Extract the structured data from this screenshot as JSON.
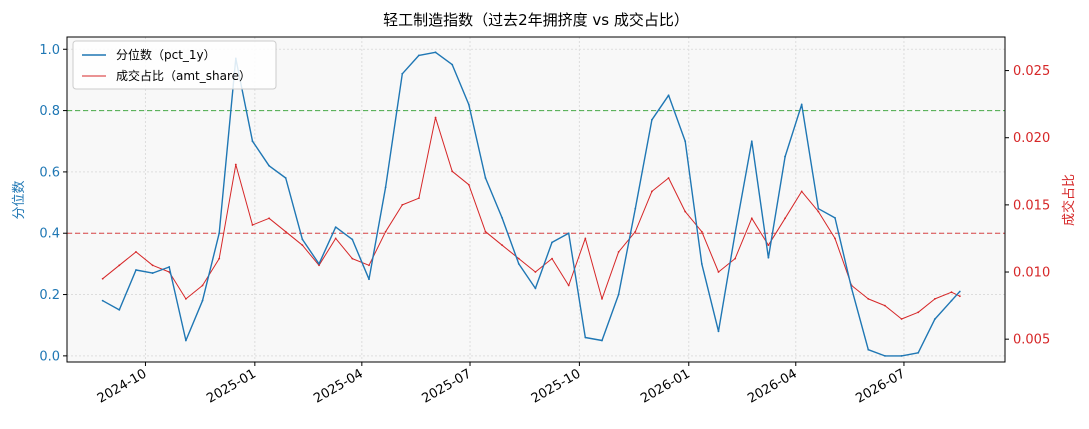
{
  "chart_data": {
    "type": "line",
    "title": "轻工制造指数（过去2年拥挤度 vs 成交占比）",
    "ylabel_left": "分位数",
    "ylabel_right": "成交占比",
    "xlabel": "",
    "ylim_left": [
      -0.02,
      1.04
    ],
    "ylim_right": [
      0.0033,
      0.0275
    ],
    "yticks_left": [
      "0.0",
      "0.2",
      "0.4",
      "0.6",
      "0.8",
      "1.0"
    ],
    "yticks_right": [
      "0.005",
      "0.010",
      "0.015",
      "0.020",
      "0.025"
    ],
    "x_ticks": [
      "2024-10",
      "2025-01",
      "2025-04",
      "2025-07",
      "2025-10",
      "2026-01",
      "2026-04",
      "2026-07"
    ],
    "grid": true,
    "legend_position": "top-left",
    "hlines": [
      {
        "axis": "left",
        "value": 0.8,
        "color": "#2ca02c",
        "style": "dashed"
      },
      {
        "axis": "left",
        "value": 0.4,
        "color": "#d62728",
        "style": "dashed"
      }
    ],
    "colors": {
      "pct": "#1f77b4",
      "amt": "#d62728"
    },
    "series": [
      {
        "name": "分位数（pct_1y）",
        "axis": "left",
        "x": [
          "2024-08-26",
          "2024-09-09",
          "2024-09-23",
          "2024-10-07",
          "2024-10-21",
          "2024-11-04",
          "2024-11-18",
          "2024-12-02",
          "2024-12-16",
          "2024-12-30",
          "2025-01-13",
          "2025-01-27",
          "2025-02-10",
          "2025-02-24",
          "2025-03-10",
          "2025-03-24",
          "2025-04-07",
          "2025-04-21",
          "2025-05-05",
          "2025-05-19",
          "2025-06-02",
          "2025-06-16",
          "2025-06-30",
          "2025-07-14",
          "2025-07-28",
          "2025-08-11",
          "2025-08-25",
          "2025-09-08",
          "2025-09-22",
          "2025-10-06",
          "2025-10-20",
          "2025-11-03",
          "2025-11-17",
          "2025-12-01",
          "2025-12-15",
          "2025-12-29",
          "2026-01-12",
          "2026-01-26",
          "2026-02-09",
          "2026-02-23",
          "2026-03-09",
          "2026-03-23",
          "2026-04-06",
          "2026-04-20",
          "2026-05-04",
          "2026-05-18",
          "2026-06-01",
          "2026-06-15",
          "2026-06-29",
          "2026-07-13",
          "2026-07-27",
          "2026-08-10",
          "2026-08-17"
        ],
        "values": [
          0.18,
          0.15,
          0.28,
          0.27,
          0.29,
          0.05,
          0.18,
          0.4,
          0.97,
          0.7,
          0.62,
          0.58,
          0.38,
          0.3,
          0.42,
          0.38,
          0.25,
          0.55,
          0.92,
          0.98,
          0.99,
          0.95,
          0.82,
          0.58,
          0.45,
          0.3,
          0.22,
          0.37,
          0.4,
          0.06,
          0.05,
          0.2,
          0.48,
          0.77,
          0.85,
          0.7,
          0.3,
          0.08,
          0.4,
          0.7,
          0.32,
          0.65,
          0.82,
          0.48,
          0.45,
          0.22,
          0.02,
          0.0,
          0.0,
          0.01,
          0.12,
          0.18,
          0.21
        ]
      },
      {
        "name": "成交占比（amt_share）",
        "axis": "right",
        "x": [
          "2024-08-26",
          "2024-09-09",
          "2024-09-23",
          "2024-10-07",
          "2024-10-21",
          "2024-11-04",
          "2024-11-18",
          "2024-12-02",
          "2024-12-16",
          "2024-12-30",
          "2025-01-13",
          "2025-01-27",
          "2025-02-10",
          "2025-02-24",
          "2025-03-10",
          "2025-03-24",
          "2025-04-07",
          "2025-04-21",
          "2025-05-05",
          "2025-05-19",
          "2025-06-02",
          "2025-06-16",
          "2025-06-30",
          "2025-07-14",
          "2025-07-28",
          "2025-08-11",
          "2025-08-25",
          "2025-09-08",
          "2025-09-22",
          "2025-10-06",
          "2025-10-20",
          "2025-11-03",
          "2025-11-17",
          "2025-12-01",
          "2025-12-15",
          "2025-12-29",
          "2026-01-12",
          "2026-01-26",
          "2026-02-09",
          "2026-02-23",
          "2026-03-09",
          "2026-03-23",
          "2026-04-06",
          "2026-04-20",
          "2026-05-04",
          "2026-05-18",
          "2026-06-01",
          "2026-06-15",
          "2026-06-29",
          "2026-07-13",
          "2026-07-27",
          "2026-08-10",
          "2026-08-17"
        ],
        "values": [
          0.0095,
          0.0105,
          0.0115,
          0.0105,
          0.01,
          0.008,
          0.009,
          0.011,
          0.018,
          0.0135,
          0.014,
          0.013,
          0.012,
          0.0105,
          0.0125,
          0.011,
          0.0105,
          0.013,
          0.015,
          0.0155,
          0.0215,
          0.0175,
          0.0165,
          0.013,
          0.012,
          0.011,
          0.01,
          0.011,
          0.009,
          0.0125,
          0.008,
          0.0115,
          0.013,
          0.016,
          0.017,
          0.0145,
          0.013,
          0.01,
          0.011,
          0.014,
          0.012,
          0.014,
          0.016,
          0.0145,
          0.0125,
          0.009,
          0.008,
          0.0075,
          0.0065,
          0.007,
          0.008,
          0.0085,
          0.0082
        ]
      }
    ]
  }
}
